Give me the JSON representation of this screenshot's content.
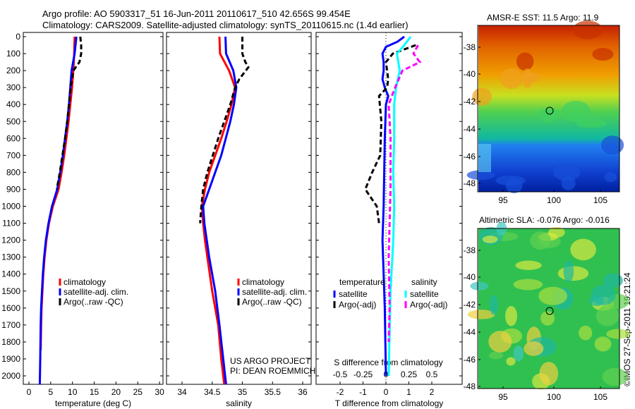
{
  "title": {
    "line1": "Argo profile: AO 5903317_51 16-Jun-2011 20110617_510 42.656S 99.454E",
    "line2": "Climatology: CARS2009. Satellite-adjusted climatology: synTS_20110615.nc (1.4d earlier)"
  },
  "colors": {
    "clim": "#ff0000",
    "sat": "#0000ff",
    "argo": "#000000",
    "s_sat": "#00ffff",
    "s_argo": "#ff00ff"
  },
  "depth_ticks": [
    "0",
    "100",
    "200",
    "300",
    "400",
    "500",
    "600",
    "700",
    "800",
    "900",
    "1000",
    "1100",
    "1200",
    "1300",
    "1400",
    "1500",
    "1600",
    "1700",
    "1800",
    "1900",
    "2000"
  ],
  "chart_data": [
    {
      "type": "line",
      "xlabel": "temperature (deg C)",
      "xlim": [
        -1,
        32
      ],
      "ylim": [
        2070,
        0
      ],
      "xticks": [
        "0",
        "5",
        "10",
        "15",
        "20",
        "25",
        "30"
      ],
      "xtick_values": [
        0,
        5,
        10,
        15,
        20,
        25,
        30
      ],
      "legend": [
        "climatology",
        "satellite-adj. clim.",
        "Argo(..raw -QC)"
      ],
      "series": [
        {
          "name": "climatology",
          "points": [
            [
              10.5,
              0
            ],
            [
              10.4,
              100
            ],
            [
              10.2,
              200
            ],
            [
              9.9,
              300
            ],
            [
              9.5,
              400
            ],
            [
              9.1,
              500
            ],
            [
              8.6,
              600
            ],
            [
              8.1,
              700
            ],
            [
              7.5,
              800
            ],
            [
              6.8,
              900
            ],
            [
              5.5,
              1000
            ],
            [
              4.6,
              1100
            ],
            [
              4.0,
              1200
            ],
            [
              3.6,
              1300
            ],
            [
              3.3,
              1400
            ],
            [
              3.1,
              1500
            ],
            [
              2.9,
              1600
            ],
            [
              2.8,
              1700
            ],
            [
              2.7,
              1850
            ]
          ]
        },
        {
          "name": "satellite-adj. clim.",
          "points": [
            [
              10.9,
              0
            ],
            [
              10.5,
              100
            ],
            [
              9.8,
              200
            ],
            [
              9.5,
              300
            ],
            [
              9.2,
              400
            ],
            [
              8.8,
              500
            ],
            [
              8.3,
              600
            ],
            [
              7.8,
              700
            ],
            [
              7.2,
              800
            ],
            [
              6.5,
              900
            ],
            [
              5.3,
              1000
            ],
            [
              4.5,
              1100
            ],
            [
              3.9,
              1200
            ],
            [
              3.5,
              1300
            ],
            [
              3.2,
              1400
            ],
            [
              3.0,
              1500
            ],
            [
              2.8,
              1600
            ],
            [
              2.7,
              1700
            ],
            [
              2.6,
              1900
            ],
            [
              2.5,
              2050
            ]
          ]
        },
        {
          "name": "Argo(..raw -QC)",
          "points": [
            [
              11.8,
              0
            ],
            [
              12.0,
              50
            ],
            [
              12.0,
              100
            ],
            [
              11.6,
              150
            ],
            [
              10.2,
              200
            ],
            [
              9.6,
              300
            ],
            [
              9.2,
              400
            ],
            [
              8.8,
              500
            ],
            [
              8.3,
              600
            ],
            [
              7.7,
              700
            ],
            [
              7.1,
              800
            ],
            [
              6.4,
              900
            ]
          ]
        }
      ]
    },
    {
      "type": "line",
      "xlabel": "salinity",
      "xlim": [
        33.7,
        36.1
      ],
      "ylim": [
        2070,
        0
      ],
      "xticks": [
        "34",
        "34.5",
        "35",
        "35.5",
        "36"
      ],
      "xtick_values": [
        34,
        34.5,
        35,
        35.5,
        36
      ],
      "legend": [
        "climatology",
        "satellite-adj. clim.",
        "Argo(..raw -QC)"
      ],
      "annotation": [
        "US ARGO PROJECT",
        "PI: DEAN ROEMMICH"
      ],
      "series": [
        {
          "name": "climatology",
          "points": [
            [
              34.62,
              0
            ],
            [
              34.63,
              100
            ],
            [
              34.78,
              200
            ],
            [
              34.88,
              300
            ],
            [
              34.82,
              400
            ],
            [
              34.74,
              500
            ],
            [
              34.65,
              600
            ],
            [
              34.55,
              700
            ],
            [
              34.45,
              800
            ],
            [
              34.38,
              900
            ],
            [
              34.33,
              1000
            ],
            [
              34.35,
              1100
            ],
            [
              34.38,
              1200
            ],
            [
              34.42,
              1300
            ],
            [
              34.5,
              1500
            ],
            [
              34.6,
              1700
            ],
            [
              34.65,
              1900
            ],
            [
              34.7,
              2050
            ]
          ]
        },
        {
          "name": "satellite-adj. clim.",
          "points": [
            [
              34.72,
              0
            ],
            [
              34.73,
              100
            ],
            [
              34.85,
              200
            ],
            [
              34.9,
              300
            ],
            [
              34.86,
              400
            ],
            [
              34.8,
              500
            ],
            [
              34.65,
              700
            ],
            [
              34.45,
              900
            ],
            [
              34.35,
              1000
            ],
            [
              34.37,
              1100
            ],
            [
              34.45,
              1300
            ],
            [
              34.55,
              1500
            ],
            [
              34.62,
              1700
            ],
            [
              34.73,
              2050
            ]
          ]
        },
        {
          "name": "Argo(..raw -QC)",
          "points": [
            [
              35.0,
              0
            ],
            [
              35.0,
              100
            ],
            [
              35.05,
              150
            ],
            [
              35.1,
              180
            ],
            [
              34.95,
              250
            ],
            [
              34.88,
              300
            ],
            [
              34.8,
              400
            ],
            [
              34.6,
              600
            ],
            [
              34.42,
              800
            ],
            [
              34.35,
              900
            ],
            [
              34.32,
              1000
            ],
            [
              34.3,
              1100
            ]
          ]
        }
      ]
    },
    {
      "type": "line",
      "xlabel": "T difference from climatology",
      "x2label": "S difference from climatology",
      "xlim": [
        -3,
        3.3
      ],
      "ylim": [
        2070,
        0
      ],
      "xticks": [
        "-2",
        "-1",
        "0",
        "1",
        "2"
      ],
      "xtick_values": [
        -2,
        -1,
        0,
        1,
        2
      ],
      "x2ticks": [
        "-0.5",
        "-0.25",
        "0",
        "0.25",
        "0.5"
      ],
      "x2tick_values": [
        -0.5,
        -0.25,
        0,
        0.25,
        0.5
      ],
      "legend_headers": [
        "temperature",
        "salinity"
      ],
      "legend": [
        "satellite",
        "Argo(-adj)",
        "satellite",
        "Argo(-adj)"
      ],
      "series": [
        {
          "name": "T satellite",
          "axis": "T",
          "points": [
            [
              0.8,
              0
            ],
            [
              0.5,
              30
            ],
            [
              0.0,
              60
            ],
            [
              -0.15,
              100
            ],
            [
              -0.1,
              150
            ],
            [
              -0.1,
              200
            ],
            [
              -0.15,
              250
            ],
            [
              -0.05,
              300
            ],
            [
              0.1,
              350
            ],
            [
              0,
              400
            ],
            [
              -0.05,
              600
            ],
            [
              -0.1,
              1000
            ],
            [
              -0.15,
              1200
            ],
            [
              -0.1,
              1400
            ],
            [
              -0.05,
              1600
            ],
            [
              0,
              2000
            ]
          ]
        },
        {
          "name": "T Argo(-adj)",
          "axis": "T",
          "points": [
            [
              1.3,
              50
            ],
            [
              0.3,
              100
            ],
            [
              0.0,
              150
            ],
            [
              0.1,
              250
            ],
            [
              0.05,
              300
            ],
            [
              -0.3,
              350
            ],
            [
              -0.2,
              500
            ],
            [
              -0.25,
              700
            ],
            [
              -0.6,
              800
            ],
            [
              -0.9,
              900
            ],
            [
              -0.4,
              1000
            ],
            [
              -0.3,
              1100
            ]
          ]
        },
        {
          "name": "S satellite",
          "axis": "S",
          "points": [
            [
              0.27,
              0
            ],
            [
              0.2,
              50
            ],
            [
              0.12,
              100
            ],
            [
              0.15,
              200
            ],
            [
              0.11,
              300
            ],
            [
              0.09,
              400
            ],
            [
              0.09,
              600
            ],
            [
              0.08,
              800
            ],
            [
              0.09,
              1000
            ],
            [
              0.08,
              1200
            ],
            [
              0.05,
              1500
            ],
            [
              0.03,
              2000
            ]
          ]
        },
        {
          "name": "S Argo(-adj)",
          "axis": "S",
          "points": [
            [
              0.35,
              50
            ],
            [
              0.3,
              100
            ],
            [
              0.37,
              150
            ],
            [
              0.18,
              200
            ],
            [
              0.1,
              300
            ],
            [
              0.03,
              400
            ],
            [
              0.05,
              600
            ],
            [
              0.05,
              900
            ],
            [
              0.04,
              1100
            ],
            [
              0.03,
              1300
            ],
            [
              0.04,
              1600
            ],
            [
              0.03,
              1800
            ]
          ]
        }
      ]
    }
  ],
  "maps": [
    {
      "title": "AMSR-E SST: 11.5 Argo: 11.9",
      "yticks": [
        "-38",
        "-40",
        "-42",
        "-44",
        "-46",
        "-48"
      ],
      "xticks": [
        "95",
        "100",
        "105"
      ]
    },
    {
      "title": "Altimetric SLA: -0.076 Argo: -0.016",
      "yticks": [
        "-38",
        "-40",
        "-42",
        "-44",
        "-46",
        "-48"
      ],
      "xticks": [
        "95",
        "100",
        "105"
      ]
    }
  ],
  "credit": "©IMOS 27-Sep-2011 19:21:24"
}
